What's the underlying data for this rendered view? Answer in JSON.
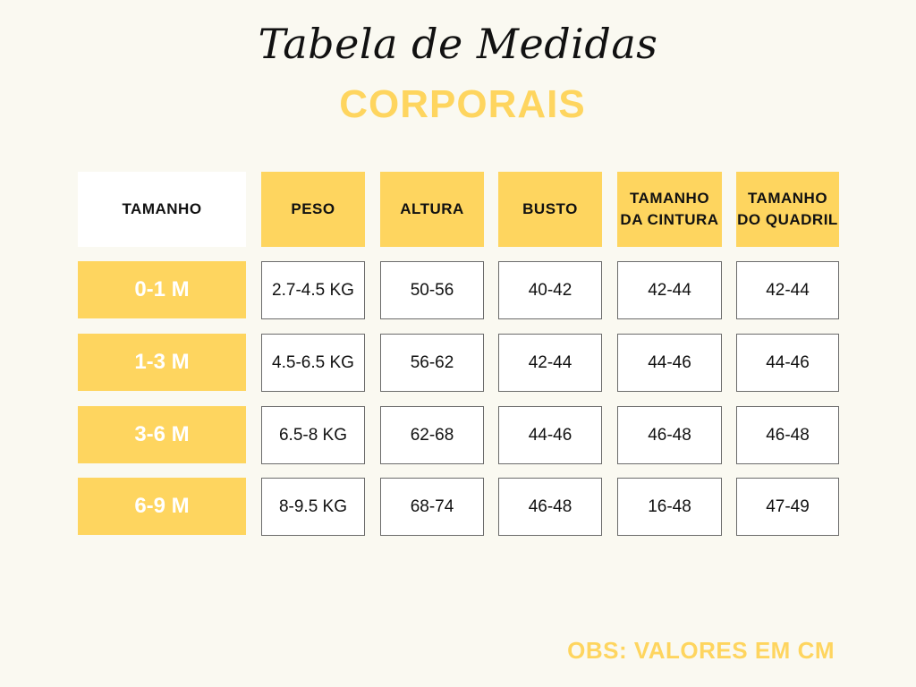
{
  "title": "Tabela de Medidas",
  "subtitle": "CORPORAIS",
  "colors": {
    "accent": "#fed55f",
    "background": "#faf9f1",
    "text": "#111111"
  },
  "table": {
    "headers": [
      "TAMANHO",
      "PESO",
      "ALTURA",
      "BUSTO",
      "TAMANHO DA CINTURA",
      "TAMANHO DO QUADRIL"
    ],
    "rows": [
      {
        "size": "0-1 M",
        "peso": "2.7-4.5 KG",
        "altura": "50-56",
        "busto": "40-42",
        "cintura": "42-44",
        "quadril": "42-44"
      },
      {
        "size": "1-3 M",
        "peso": "4.5-6.5 KG",
        "altura": "56-62",
        "busto": "42-44",
        "cintura": "44-46",
        "quadril": "44-46"
      },
      {
        "size": "3-6 M",
        "peso": "6.5-8 KG",
        "altura": "62-68",
        "busto": "44-46",
        "cintura": "46-48",
        "quadril": "46-48"
      },
      {
        "size": "6-9 M",
        "peso": "8-9.5 KG",
        "altura": "68-74",
        "busto": "46-48",
        "cintura": "16-48",
        "quadril": "47-49"
      }
    ]
  },
  "note": "OBS: VALORES EM CM"
}
